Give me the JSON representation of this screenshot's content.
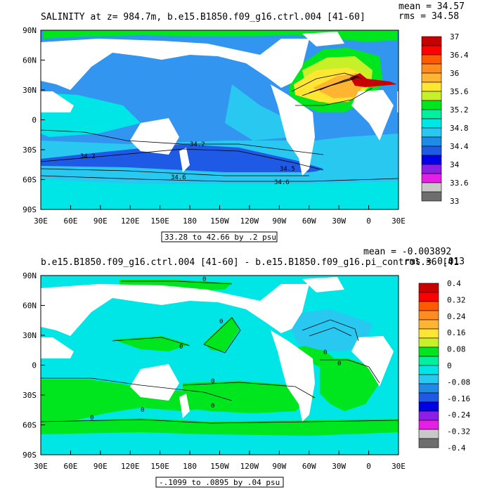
{
  "chart_data": [
    {
      "type": "heatmap",
      "title": "SALINITY at z= 984.7m, b.e15.B1850.f09_g16.ctrl.004 [41-60]",
      "stats": {
        "mean": "mean = 34.57",
        "rms": "rms = 34.58"
      },
      "x_ticks": [
        "30E",
        "60E",
        "90E",
        "120E",
        "150E",
        "180",
        "150W",
        "120W",
        "90W",
        "60W",
        "30W",
        "0",
        "30E"
      ],
      "y_ticks": [
        "90N",
        "60N",
        "30N",
        "0",
        "30S",
        "60S",
        "90S"
      ],
      "x_range": [
        30,
        390
      ],
      "y_range": [
        -90,
        90
      ],
      "colorbar_labels": [
        "37",
        "36.4",
        "36",
        "35.6",
        "35.2",
        "34.8",
        "34.4",
        "34",
        "33.6",
        "33"
      ],
      "colorbar_colors": [
        "#c80000",
        "#ff0000",
        "#ff5a00",
        "#ff8c1e",
        "#ffb432",
        "#ffe632",
        "#c8f028",
        "#00e61e",
        "#00f0a0",
        "#00e6e6",
        "#28c8f0",
        "#1e8ce6",
        "#1e5ae6",
        "#0000e6",
        "#8c1ee6",
        "#e61ee6",
        "#c8c8c8",
        "#6e6e6e"
      ],
      "contour_labels": [
        "34.2",
        "34.2",
        "34.5",
        "34.6",
        "34.6"
      ],
      "range_text": "33.28 to 42.66 by .2 psu",
      "fields": {
        "ocean_base": "#3296f0",
        "band_light": "#28c8f0",
        "band_cyan": "#00e6e6",
        "deep_band": "#1e5ae6",
        "atl_green": "#00e61e",
        "atl_lime": "#c8f028",
        "atl_yellow": "#ffe632",
        "atl_orange": "#ffb432",
        "med_red": "#c80000",
        "land": "#ffffff"
      }
    },
    {
      "type": "heatmap",
      "title": "b.e15.B1850.f09_g16.ctrl.004 [41-60] - b.e15.B1850.f09_g16.pi_control.36 [41",
      "stats": {
        "mean": "mean = -0.003892",
        "rms": "rms = 0.013"
      },
      "x_ticks": [
        "30E",
        "60E",
        "90E",
        "120E",
        "150E",
        "180",
        "150W",
        "120W",
        "90W",
        "60W",
        "30W",
        "0",
        "30E"
      ],
      "y_ticks": [
        "90N",
        "60N",
        "30N",
        "0",
        "30S",
        "60S",
        "90S"
      ],
      "x_range": [
        30,
        390
      ],
      "y_range": [
        -90,
        90
      ],
      "colorbar_labels": [
        "0.4",
        "0.32",
        "0.24",
        "0.16",
        "0.08",
        "0",
        "-0.08",
        "-0.16",
        "-0.24",
        "-0.32",
        "-0.4"
      ],
      "colorbar_colors": [
        "#c80000",
        "#ff0000",
        "#ff5a00",
        "#ff8c1e",
        "#ffb432",
        "#ffe632",
        "#c8f028",
        "#00e61e",
        "#00f0a0",
        "#00e6e6",
        "#28c8f0",
        "#1e8ce6",
        "#1e5ae6",
        "#0000e6",
        "#8c1ee6",
        "#e61ee6",
        "#c8c8c8",
        "#6e6e6e"
      ],
      "contour_labels": [
        "0",
        "0",
        "0",
        "0",
        "0",
        "0",
        "0",
        "0",
        "0"
      ],
      "range_text": "-.1099 to .0895 by .04 psu",
      "fields": {
        "ocean_base": "#00f0a0",
        "green": "#00e61e",
        "cyan": "#00e6e6",
        "light_blue": "#28c8f0",
        "land": "#ffffff"
      }
    }
  ]
}
